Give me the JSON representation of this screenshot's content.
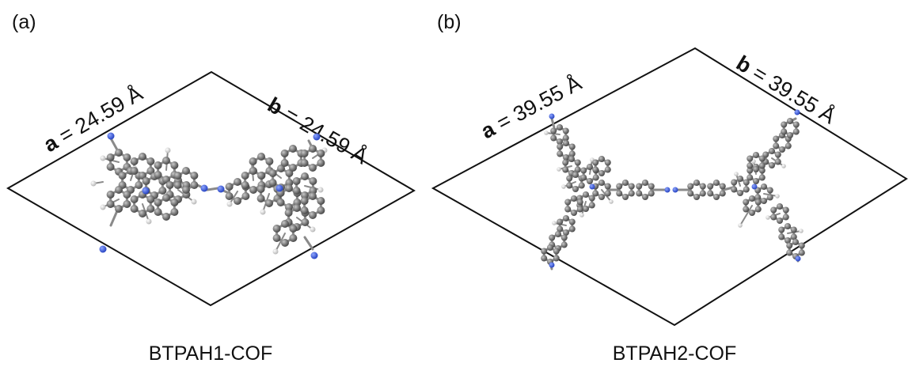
{
  "panels": [
    {
      "label": "(a)",
      "a_symbol": "a",
      "a_value": " = 24.59 Å",
      "b_symbol": "b",
      "b_value": " = 24.59 Å",
      "caption": "BTPAH1-COF"
    },
    {
      "label": "(b)",
      "a_symbol": "a",
      "a_value": " = 39.55 Å",
      "b_symbol": "b",
      "b_value": " = 39.55 Å",
      "caption": "BTPAH2-COF"
    }
  ],
  "colors": {
    "carbon": "#7a7a7a",
    "hydrogen": "#d9d9d9",
    "nitrogen": "#3a5bd9",
    "cell_line": "#111111"
  }
}
